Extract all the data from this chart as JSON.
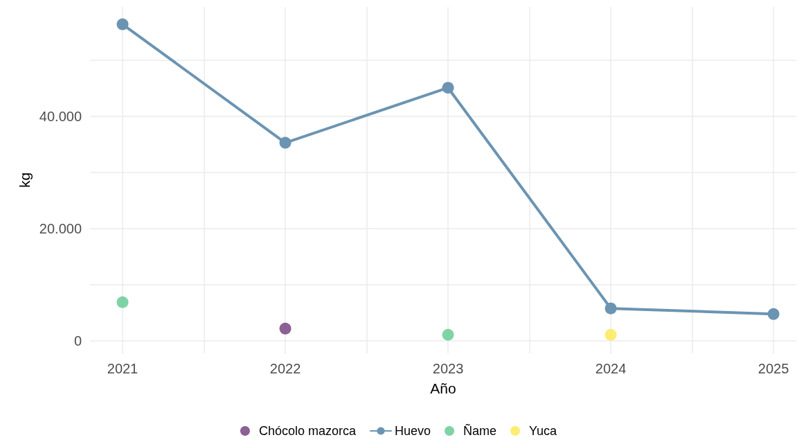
{
  "chart_data": {
    "type": "line",
    "xlabel": "Año",
    "ylabel": "kg",
    "xlim": [
      2020.8,
      2025.14
    ],
    "xticks": [
      2021,
      {
        "value": 2021.5,
        "label": null
      },
      2022,
      {
        "value": 2022.5,
        "label": null
      },
      2023,
      {
        "value": 2023.5,
        "label": null
      },
      2024,
      {
        "value": 2024.5,
        "label": null
      },
      2025
    ],
    "ylim": [
      -2200,
      59500
    ],
    "yticks": [
      {
        "value": 0,
        "label": "0"
      },
      {
        "value": 10000,
        "label": null
      },
      {
        "value": 20000,
        "label": "20.000"
      },
      {
        "value": 30000,
        "label": null
      },
      {
        "value": 40000,
        "label": "40.000"
      },
      {
        "value": 50000,
        "label": null
      }
    ],
    "grid": true,
    "legend": "bottom",
    "marker": "circle",
    "line_style": "solid",
    "series": [
      {
        "name": "Chócolo mazorca",
        "type": "scatter",
        "color": "#6f3a78",
        "x": [
          2022
        ],
        "values": [
          2200
        ]
      },
      {
        "name": "Huevo",
        "type": "line",
        "color": "#6b94b2",
        "x": [
          2021,
          2022,
          2023,
          2024,
          2025
        ],
        "values": [
          56400,
          35300,
          45100,
          5800,
          4800
        ]
      },
      {
        "name": "Ñame",
        "type": "scatter",
        "color": "#5fc88e",
        "x": [
          2021,
          2023
        ],
        "values": [
          6900,
          1100
        ]
      },
      {
        "name": "Yuca",
        "type": "scatter",
        "color": "#fde94e",
        "x": [
          2024
        ],
        "values": [
          1100
        ]
      }
    ]
  }
}
